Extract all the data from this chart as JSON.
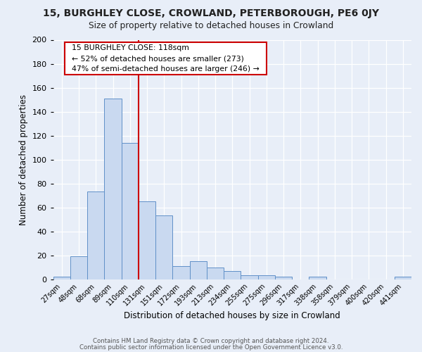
{
  "title": "15, BURGHLEY CLOSE, CROWLAND, PETERBOROUGH, PE6 0JY",
  "subtitle": "Size of property relative to detached houses in Crowland",
  "xlabel": "Distribution of detached houses by size in Crowland",
  "ylabel": "Number of detached properties",
  "bar_labels": [
    "27sqm",
    "48sqm",
    "68sqm",
    "89sqm",
    "110sqm",
    "131sqm",
    "151sqm",
    "172sqm",
    "193sqm",
    "213sqm",
    "234sqm",
    "255sqm",
    "275sqm",
    "296sqm",
    "317sqm",
    "338sqm",
    "358sqm",
    "379sqm",
    "400sqm",
    "420sqm",
    "441sqm"
  ],
  "bar_values": [
    2,
    19,
    73,
    151,
    114,
    65,
    53,
    11,
    15,
    10,
    7,
    3,
    3,
    2,
    0,
    2,
    0,
    0,
    0,
    0,
    2
  ],
  "bar_color": "#c9d9f0",
  "bar_edge_color": "#6090c8",
  "ylim": [
    0,
    200
  ],
  "yticks": [
    0,
    20,
    40,
    60,
    80,
    100,
    120,
    140,
    160,
    180,
    200
  ],
  "vline_color": "#cc0000",
  "annotation_title": "15 BURGHLEY CLOSE: 118sqm",
  "annotation_line1": "← 52% of detached houses are smaller (273)",
  "annotation_line2": "47% of semi-detached houses are larger (246) →",
  "annotation_box_color": "#ffffff",
  "annotation_box_edge": "#cc0000",
  "background_color": "#e8eef8",
  "footer1": "Contains HM Land Registry data © Crown copyright and database right 2024.",
  "footer2": "Contains public sector information licensed under the Open Government Licence v3.0."
}
